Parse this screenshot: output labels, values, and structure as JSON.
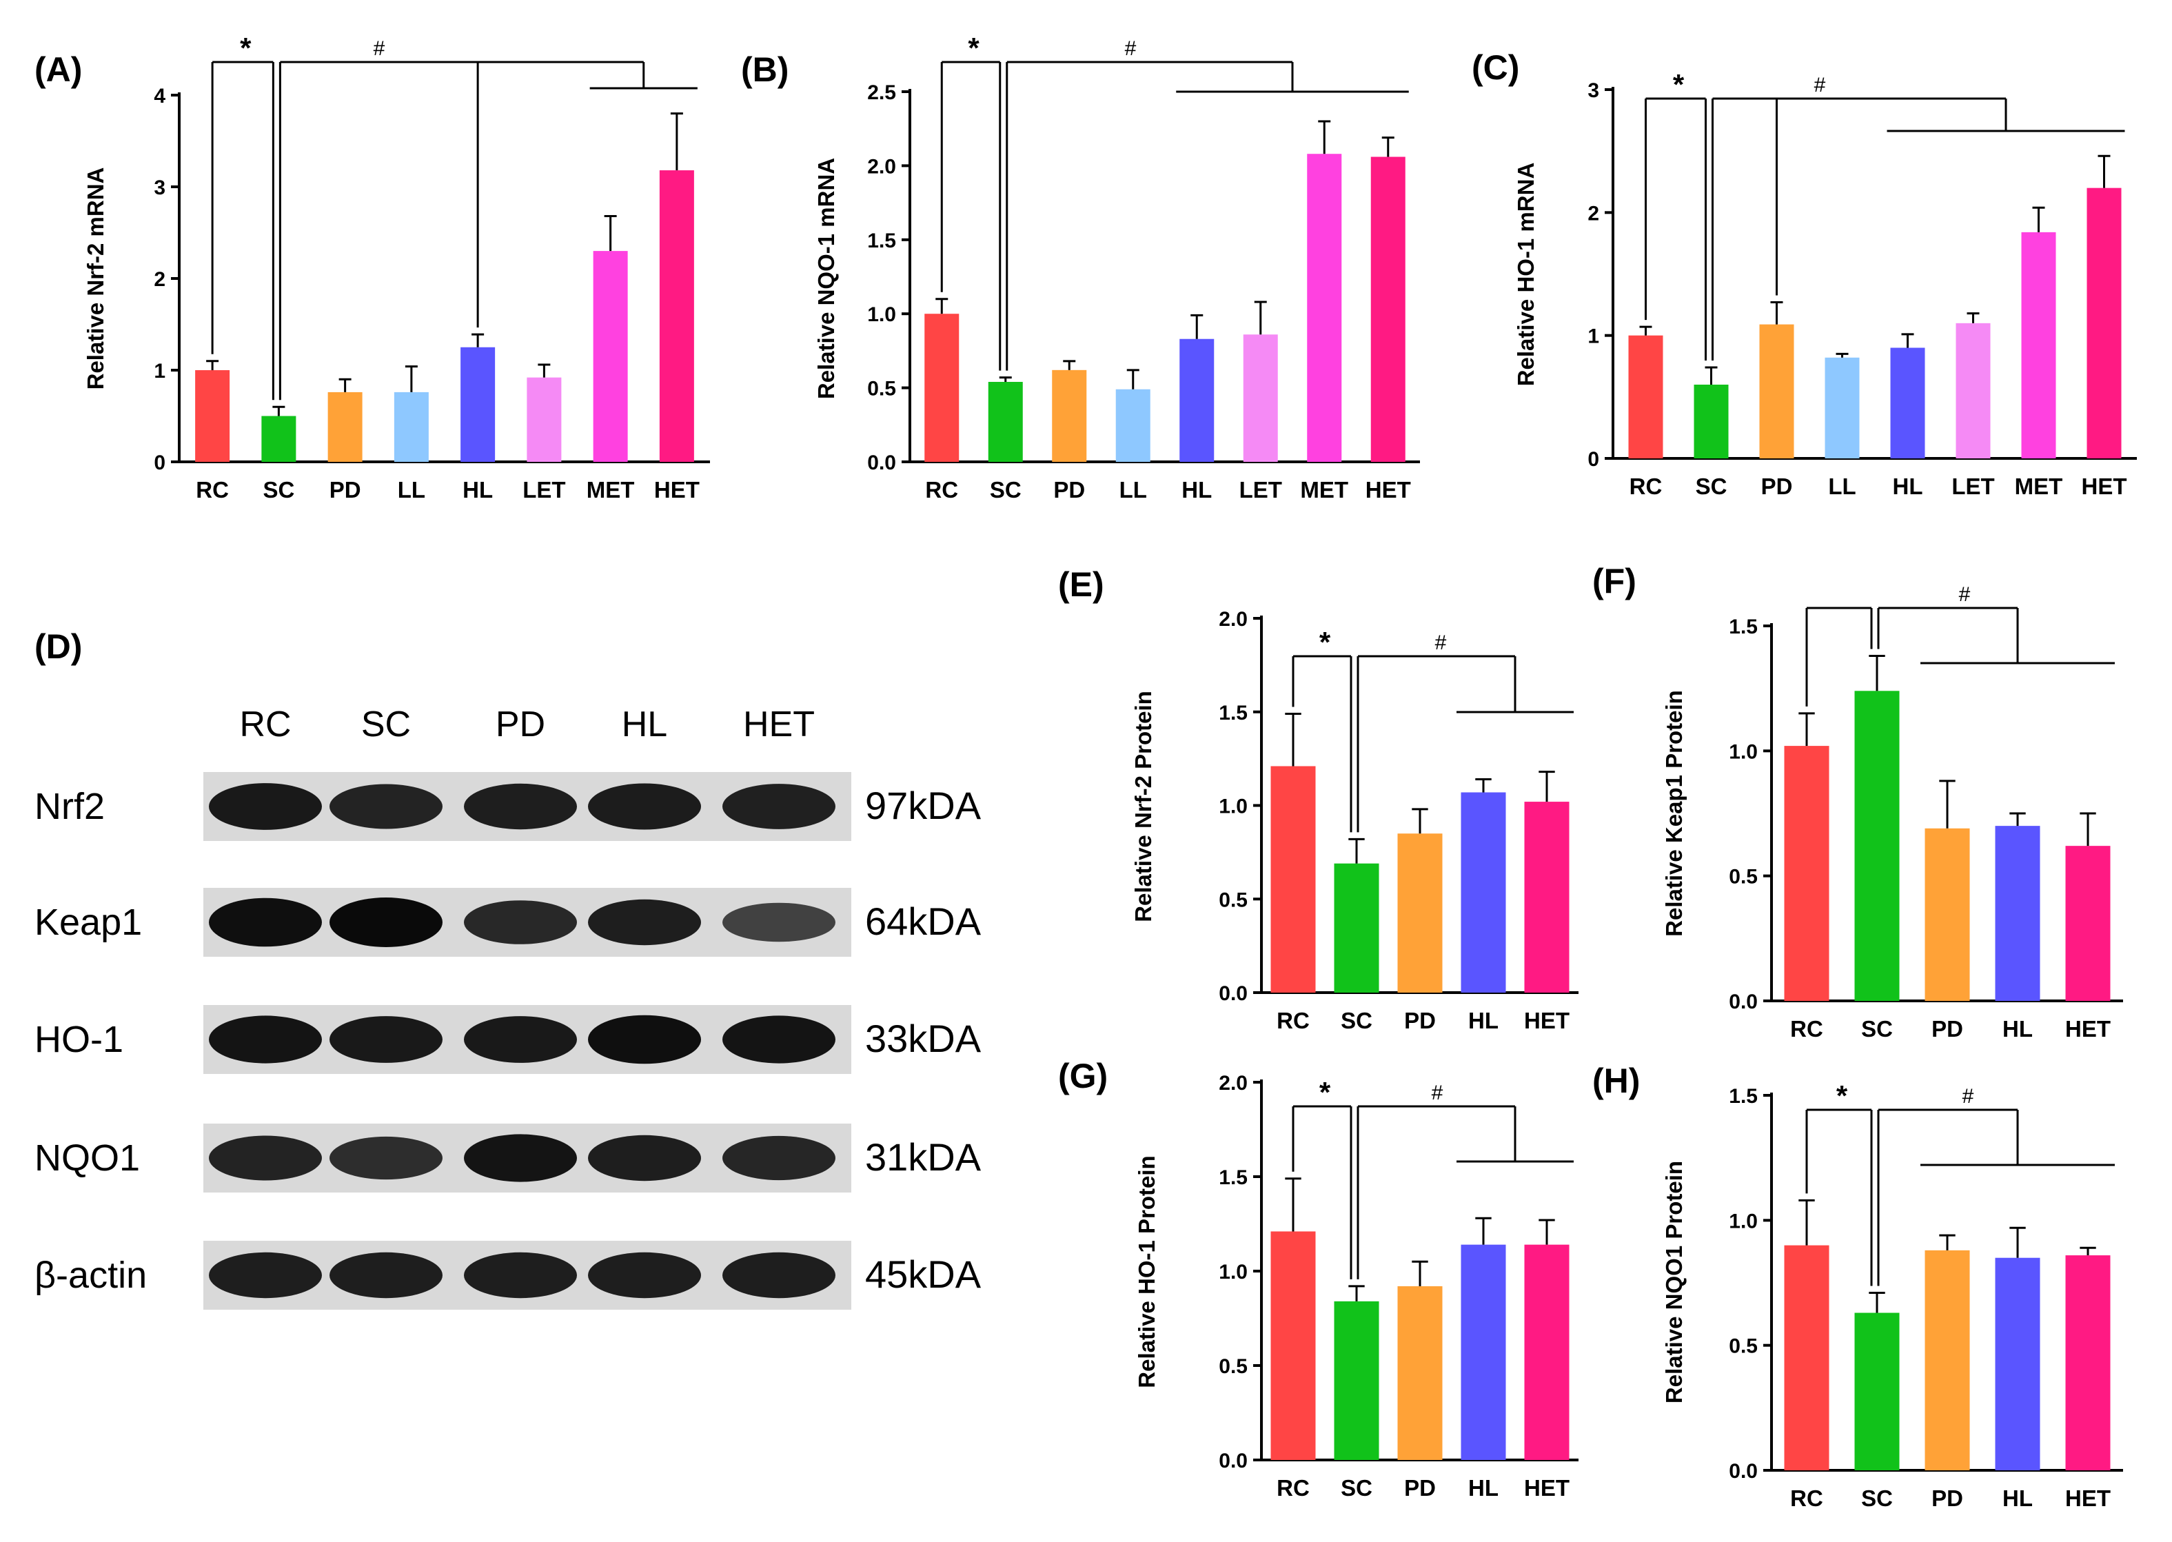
{
  "colors": {
    "RC": "#ff4545",
    "SC": "#11c21a",
    "PD": "#ffa237",
    "LL": "#8ec8ff",
    "HL": "#5a55ff",
    "LET": "#f58af5",
    "MET": "#ff41e0",
    "HET": "#ff1a83",
    "axis": "#000000",
    "error": "#000000"
  },
  "chart_data": [
    {
      "type": "bar",
      "panel": "(A)",
      "ylabel": "Relative Nrf-2 mRNA",
      "categories": [
        "RC",
        "SC",
        "PD",
        "LL",
        "HL",
        "LET",
        "MET",
        "HET"
      ],
      "values": [
        1.0,
        0.5,
        0.76,
        0.76,
        1.25,
        0.92,
        2.3,
        3.18
      ],
      "errors": [
        0.1,
        0.1,
        0.14,
        0.28,
        0.14,
        0.14,
        0.38,
        0.62
      ],
      "ylim": [
        0,
        4
      ],
      "yticks": [
        "0",
        "1",
        "2",
        "3",
        "4"
      ],
      "sig": {
        "star": "*",
        "hash": "#"
      }
    },
    {
      "type": "bar",
      "panel": "(B)",
      "ylabel": "Relative NQO-1 mRNA",
      "categories": [
        "RC",
        "SC",
        "PD",
        "LL",
        "HL",
        "LET",
        "MET",
        "HET"
      ],
      "values": [
        1.0,
        0.54,
        0.62,
        0.49,
        0.83,
        0.86,
        2.08,
        2.06
      ],
      "errors": [
        0.1,
        0.03,
        0.06,
        0.13,
        0.16,
        0.22,
        0.22,
        0.13
      ],
      "ylim": [
        0,
        2.5
      ],
      "yticks": [
        "0.0",
        "0.5",
        "1.0",
        "1.5",
        "2.0",
        "2.5"
      ],
      "sig": {
        "star": "*",
        "hash": "#"
      }
    },
    {
      "type": "bar",
      "panel": "(C)",
      "ylabel": "Relative HO-1 mRNA",
      "categories": [
        "RC",
        "SC",
        "PD",
        "LL",
        "HL",
        "LET",
        "MET",
        "HET"
      ],
      "values": [
        1.0,
        0.6,
        1.09,
        0.82,
        0.9,
        1.1,
        1.84,
        2.2
      ],
      "errors": [
        0.07,
        0.14,
        0.18,
        0.03,
        0.11,
        0.08,
        0.2,
        0.26
      ],
      "ylim": [
        0,
        3
      ],
      "yticks": [
        "0",
        "1",
        "2",
        "3"
      ],
      "sig": {
        "star": "*",
        "hash": "#"
      }
    },
    {
      "type": "bar",
      "panel": "(E)",
      "ylabel": "Relative Nrf-2 Protein",
      "categories": [
        "RC",
        "SC",
        "PD",
        "HL",
        "HET"
      ],
      "values": [
        1.21,
        0.69,
        0.85,
        1.07,
        1.02
      ],
      "errors": [
        0.28,
        0.13,
        0.13,
        0.07,
        0.16
      ],
      "ylim": [
        0,
        2
      ],
      "yticks": [
        "0.0",
        "0.5",
        "1.0",
        "1.5",
        "2.0"
      ],
      "sig": {
        "star": "*",
        "hash": "#"
      }
    },
    {
      "type": "bar",
      "panel": "(F)",
      "ylabel": "Relative Keap1 Protein",
      "categories": [
        "RC",
        "SC",
        "PD",
        "HL",
        "HET"
      ],
      "values": [
        1.02,
        1.24,
        0.69,
        0.7,
        0.62
      ],
      "errors": [
        0.13,
        0.14,
        0.19,
        0.05,
        0.13
      ],
      "ylim": [
        0,
        1.5
      ],
      "yticks": [
        "0.0",
        "0.5",
        "1.0",
        "1.5"
      ],
      "sig": {
        "star": "",
        "hash": "#"
      }
    },
    {
      "type": "bar",
      "panel": "(G)",
      "ylabel": "Relative HO-1 Protein",
      "categories": [
        "RC",
        "SC",
        "PD",
        "HL",
        "HET"
      ],
      "values": [
        1.21,
        0.84,
        0.92,
        1.14,
        1.14
      ],
      "errors": [
        0.28,
        0.08,
        0.13,
        0.14,
        0.13
      ],
      "ylim": [
        0,
        2
      ],
      "yticks": [
        "0.0",
        "0.5",
        "1.0",
        "1.5",
        "2.0"
      ],
      "sig": {
        "star": "*",
        "hash": "#"
      }
    },
    {
      "type": "bar",
      "panel": "(H)",
      "ylabel": "Relative NQO1 Protein",
      "categories": [
        "RC",
        "SC",
        "PD",
        "HL",
        "HET"
      ],
      "values": [
        0.9,
        0.63,
        0.88,
        0.85,
        0.86
      ],
      "errors": [
        0.18,
        0.08,
        0.06,
        0.12,
        0.03
      ],
      "ylim": [
        0,
        1.5
      ],
      "yticks": [
        "0.0",
        "0.5",
        "1.0",
        "1.5"
      ],
      "sig": {
        "star": "*",
        "hash": "#"
      }
    }
  ],
  "western_blot": {
    "panel": "(D)",
    "lanes": [
      "RC",
      "SC",
      "PD",
      "HL",
      "HET"
    ],
    "rows": [
      {
        "protein": "Nrf2",
        "size": "97kDA",
        "intensity": [
          0.85,
          0.75,
          0.8,
          0.82,
          0.78
        ]
      },
      {
        "protein": "Keap1",
        "size": "64kDA",
        "intensity": [
          0.95,
          1.0,
          0.7,
          0.8,
          0.45
        ]
      },
      {
        "protein": "HO-1",
        "size": "33kDA",
        "intensity": [
          0.9,
          0.85,
          0.85,
          0.95,
          0.9
        ]
      },
      {
        "protein": "NQO1",
        "size": "31kDA",
        "intensity": [
          0.75,
          0.65,
          0.9,
          0.8,
          0.72
        ]
      },
      {
        "protein": "β-actin",
        "size": "45kDA",
        "intensity": [
          0.8,
          0.8,
          0.8,
          0.8,
          0.8
        ]
      }
    ]
  }
}
